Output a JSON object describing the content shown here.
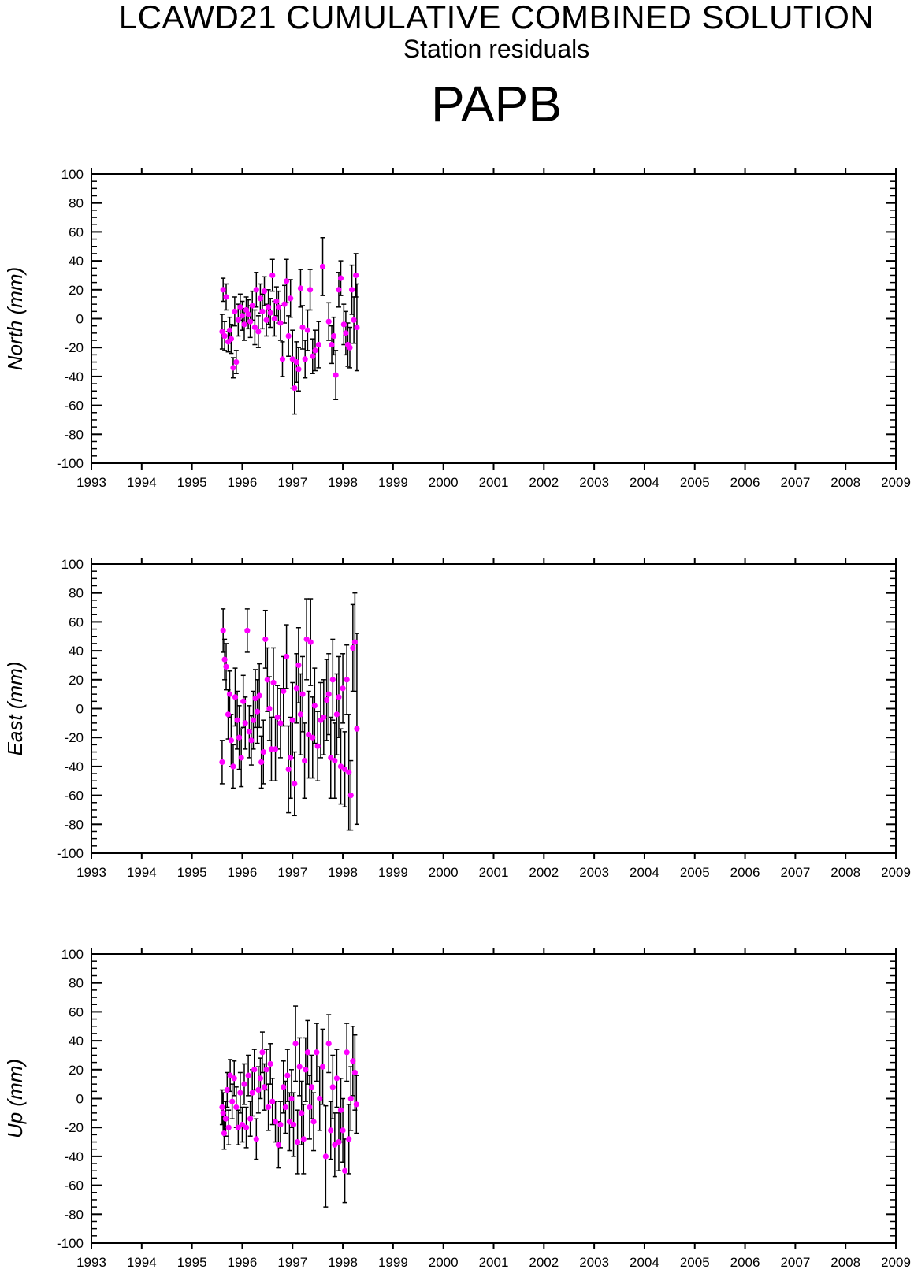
{
  "header": {
    "title": "LCAWD21 CUMULATIVE COMBINED SOLUTION",
    "subtitle": "Station residuals",
    "station": "PAPB"
  },
  "chart_data": [
    {
      "type": "scatter",
      "ylabel": "North (mm)",
      "xlim": [
        1993,
        2009
      ],
      "ylim": [
        -100,
        100
      ],
      "xticks": [
        1993,
        1994,
        1995,
        1996,
        1997,
        1998,
        1999,
        2000,
        2001,
        2002,
        2003,
        2004,
        2005,
        2006,
        2007,
        2008,
        2009
      ],
      "yticks": [
        100,
        80,
        60,
        40,
        20,
        0,
        -20,
        -40,
        -60,
        -80,
        -100
      ],
      "marker_color": "#ff00ff",
      "errorbar_color": "#000000",
      "points": [
        {
          "x": 1995.6,
          "y": -9,
          "err": 12
        },
        {
          "x": 1995.62,
          "y": 20,
          "err": 8
        },
        {
          "x": 1995.65,
          "y": -12,
          "err": 10
        },
        {
          "x": 1995.68,
          "y": 15,
          "err": 9
        },
        {
          "x": 1995.72,
          "y": -16,
          "err": 7
        },
        {
          "x": 1995.75,
          "y": -8,
          "err": 9
        },
        {
          "x": 1995.78,
          "y": -14,
          "err": 10
        },
        {
          "x": 1995.82,
          "y": -34,
          "err": 7
        },
        {
          "x": 1995.85,
          "y": 5,
          "err": 10
        },
        {
          "x": 1995.88,
          "y": -30,
          "err": 8
        },
        {
          "x": 1995.92,
          "y": -1,
          "err": 11
        },
        {
          "x": 1995.96,
          "y": 8,
          "err": 9
        },
        {
          "x": 1996.0,
          "y": 2,
          "err": 10
        },
        {
          "x": 1996.04,
          "y": -4,
          "err": 11
        },
        {
          "x": 1996.08,
          "y": 6,
          "err": 9
        },
        {
          "x": 1996.12,
          "y": 3,
          "err": 10
        },
        {
          "x": 1996.16,
          "y": -2,
          "err": 11
        },
        {
          "x": 1996.2,
          "y": 9,
          "err": 10
        },
        {
          "x": 1996.25,
          "y": -6,
          "err": 12
        },
        {
          "x": 1996.28,
          "y": 20,
          "err": 12
        },
        {
          "x": 1996.32,
          "y": -9,
          "err": 11
        },
        {
          "x": 1996.36,
          "y": 14,
          "err": 10
        },
        {
          "x": 1996.4,
          "y": 5,
          "err": 12
        },
        {
          "x": 1996.44,
          "y": 19,
          "err": 10
        },
        {
          "x": 1996.48,
          "y": -1,
          "err": 11
        },
        {
          "x": 1996.52,
          "y": 8,
          "err": 12
        },
        {
          "x": 1996.56,
          "y": 4,
          "err": 10
        },
        {
          "x": 1996.6,
          "y": 30,
          "err": 11
        },
        {
          "x": 1996.64,
          "y": 0,
          "err": 12
        },
        {
          "x": 1996.68,
          "y": 12,
          "err": 10
        },
        {
          "x": 1996.72,
          "y": 8,
          "err": 11
        },
        {
          "x": 1996.76,
          "y": -3,
          "err": 12
        },
        {
          "x": 1996.8,
          "y": -28,
          "err": 12
        },
        {
          "x": 1996.84,
          "y": 10,
          "err": 13
        },
        {
          "x": 1996.88,
          "y": 26,
          "err": 15
        },
        {
          "x": 1996.92,
          "y": -12,
          "err": 14
        },
        {
          "x": 1996.96,
          "y": 14,
          "err": 13
        },
        {
          "x": 1997.0,
          "y": -28,
          "err": 20
        },
        {
          "x": 1997.04,
          "y": -48,
          "err": 18
        },
        {
          "x": 1997.08,
          "y": -30,
          "err": 14
        },
        {
          "x": 1997.12,
          "y": -35,
          "err": 15
        },
        {
          "x": 1997.16,
          "y": 21,
          "err": 13
        },
        {
          "x": 1997.2,
          "y": -6,
          "err": 15
        },
        {
          "x": 1997.25,
          "y": -28,
          "err": 13
        },
        {
          "x": 1997.3,
          "y": -8,
          "err": 14
        },
        {
          "x": 1997.35,
          "y": 20,
          "err": 14
        },
        {
          "x": 1997.4,
          "y": -26,
          "err": 12
        },
        {
          "x": 1997.45,
          "y": -22,
          "err": 14
        },
        {
          "x": 1997.52,
          "y": -18,
          "err": 16
        },
        {
          "x": 1997.6,
          "y": 36,
          "err": 20
        },
        {
          "x": 1997.72,
          "y": -2,
          "err": 13
        },
        {
          "x": 1997.78,
          "y": -18,
          "err": 13
        },
        {
          "x": 1997.82,
          "y": -12,
          "err": 13
        },
        {
          "x": 1997.86,
          "y": -39,
          "err": 17
        },
        {
          "x": 1997.92,
          "y": 20,
          "err": 12
        },
        {
          "x": 1997.96,
          "y": 28,
          "err": 12
        },
        {
          "x": 1998.02,
          "y": -4,
          "err": 14
        },
        {
          "x": 1998.06,
          "y": -10,
          "err": 15
        },
        {
          "x": 1998.1,
          "y": -18,
          "err": 15
        },
        {
          "x": 1998.14,
          "y": -20,
          "err": 14
        },
        {
          "x": 1998.18,
          "y": 20,
          "err": 17
        },
        {
          "x": 1998.22,
          "y": -1,
          "err": 16
        },
        {
          "x": 1998.26,
          "y": 30,
          "err": 15
        },
        {
          "x": 1998.28,
          "y": -6,
          "err": 30
        }
      ]
    },
    {
      "type": "scatter",
      "ylabel": "East (mm)",
      "xlim": [
        1993,
        2009
      ],
      "ylim": [
        -100,
        100
      ],
      "xticks": [
        1993,
        1994,
        1995,
        1996,
        1997,
        1998,
        1999,
        2000,
        2001,
        2002,
        2003,
        2004,
        2005,
        2006,
        2007,
        2008,
        2009
      ],
      "yticks": [
        100,
        80,
        60,
        40,
        20,
        0,
        -20,
        -40,
        -60,
        -80,
        -100
      ],
      "marker_color": "#ff00ff",
      "errorbar_color": "#000000",
      "points": [
        {
          "x": 1995.6,
          "y": -37,
          "err": 15
        },
        {
          "x": 1995.62,
          "y": 54,
          "err": 15
        },
        {
          "x": 1995.65,
          "y": 34,
          "err": 14
        },
        {
          "x": 1995.68,
          "y": 29,
          "err": 16
        },
        {
          "x": 1995.72,
          "y": -4,
          "err": 17
        },
        {
          "x": 1995.75,
          "y": 10,
          "err": 16
        },
        {
          "x": 1995.78,
          "y": -22,
          "err": 18
        },
        {
          "x": 1995.82,
          "y": -40,
          "err": 15
        },
        {
          "x": 1995.86,
          "y": 8,
          "err": 20
        },
        {
          "x": 1995.9,
          "y": -8,
          "err": 20
        },
        {
          "x": 1995.94,
          "y": -20,
          "err": 22
        },
        {
          "x": 1995.98,
          "y": -34,
          "err": 20
        },
        {
          "x": 1996.02,
          "y": 5,
          "err": 18
        },
        {
          "x": 1996.06,
          "y": -10,
          "err": 18
        },
        {
          "x": 1996.1,
          "y": 54,
          "err": 15
        },
        {
          "x": 1996.14,
          "y": -16,
          "err": 18
        },
        {
          "x": 1996.18,
          "y": -22,
          "err": 17
        },
        {
          "x": 1996.22,
          "y": -8,
          "err": 20
        },
        {
          "x": 1996.26,
          "y": 7,
          "err": 20
        },
        {
          "x": 1996.3,
          "y": -2,
          "err": 22
        },
        {
          "x": 1996.34,
          "y": 9,
          "err": 22
        },
        {
          "x": 1996.38,
          "y": -37,
          "err": 18
        },
        {
          "x": 1996.42,
          "y": -30,
          "err": 22
        },
        {
          "x": 1996.46,
          "y": 48,
          "err": 20
        },
        {
          "x": 1996.5,
          "y": 20,
          "err": 22
        },
        {
          "x": 1996.54,
          "y": 0,
          "err": 22
        },
        {
          "x": 1996.58,
          "y": -28,
          "err": 22
        },
        {
          "x": 1996.62,
          "y": 18,
          "err": 24
        },
        {
          "x": 1996.66,
          "y": -28,
          "err": 22
        },
        {
          "x": 1996.7,
          "y": -6,
          "err": 22
        },
        {
          "x": 1996.76,
          "y": -10,
          "err": 24
        },
        {
          "x": 1996.82,
          "y": 12,
          "err": 24
        },
        {
          "x": 1996.88,
          "y": 36,
          "err": 22
        },
        {
          "x": 1996.92,
          "y": -42,
          "err": 30
        },
        {
          "x": 1996.96,
          "y": -34,
          "err": 28
        },
        {
          "x": 1997.0,
          "y": -8,
          "err": 26
        },
        {
          "x": 1997.04,
          "y": -52,
          "err": 22
        },
        {
          "x": 1997.08,
          "y": 14,
          "err": 24
        },
        {
          "x": 1997.12,
          "y": 30,
          "err": 26
        },
        {
          "x": 1997.16,
          "y": -4,
          "err": 28
        },
        {
          "x": 1997.2,
          "y": 10,
          "err": 26
        },
        {
          "x": 1997.24,
          "y": -36,
          "err": 26
        },
        {
          "x": 1997.28,
          "y": 48,
          "err": 28
        },
        {
          "x": 1997.32,
          "y": -18,
          "err": 30
        },
        {
          "x": 1997.36,
          "y": 46,
          "err": 30
        },
        {
          "x": 1997.4,
          "y": -20,
          "err": 28
        },
        {
          "x": 1997.44,
          "y": 2,
          "err": 26
        },
        {
          "x": 1997.5,
          "y": -26,
          "err": 24
        },
        {
          "x": 1997.56,
          "y": -8,
          "err": 26
        },
        {
          "x": 1997.62,
          "y": -6,
          "err": 26
        },
        {
          "x": 1997.68,
          "y": 6,
          "err": 28
        },
        {
          "x": 1997.72,
          "y": 10,
          "err": 28
        },
        {
          "x": 1997.76,
          "y": -34,
          "err": 28
        },
        {
          "x": 1997.8,
          "y": 20,
          "err": 28
        },
        {
          "x": 1997.84,
          "y": -36,
          "err": 26
        },
        {
          "x": 1997.88,
          "y": -4,
          "err": 28
        },
        {
          "x": 1997.92,
          "y": 8,
          "err": 28
        },
        {
          "x": 1997.96,
          "y": -40,
          "err": 26
        },
        {
          "x": 1998.0,
          "y": 14,
          "err": 24
        },
        {
          "x": 1998.04,
          "y": -42,
          "err": 26
        },
        {
          "x": 1998.08,
          "y": 20,
          "err": 24
        },
        {
          "x": 1998.12,
          "y": -44,
          "err": 40
        },
        {
          "x": 1998.16,
          "y": -60,
          "err": 24
        },
        {
          "x": 1998.2,
          "y": 42,
          "err": 30
        },
        {
          "x": 1998.24,
          "y": 46,
          "err": 34
        },
        {
          "x": 1998.28,
          "y": -14,
          "err": 66
        }
      ]
    },
    {
      "type": "scatter",
      "ylabel": "Up (mm)",
      "xlim": [
        1993,
        2009
      ],
      "ylim": [
        -100,
        100
      ],
      "xticks": [
        1993,
        1994,
        1995,
        1996,
        1997,
        1998,
        1999,
        2000,
        2001,
        2002,
        2003,
        2004,
        2005,
        2006,
        2007,
        2008,
        2009
      ],
      "yticks": [
        100,
        80,
        60,
        40,
        20,
        0,
        -20,
        -40,
        -60,
        -80,
        -100
      ],
      "marker_color": "#ff00ff",
      "errorbar_color": "#000000",
      "points": [
        {
          "x": 1995.6,
          "y": -6,
          "err": 12
        },
        {
          "x": 1995.62,
          "y": -10,
          "err": 14
        },
        {
          "x": 1995.64,
          "y": -24,
          "err": 11
        },
        {
          "x": 1995.67,
          "y": -14,
          "err": 12
        },
        {
          "x": 1995.7,
          "y": 6,
          "err": 12
        },
        {
          "x": 1995.73,
          "y": -20,
          "err": 12
        },
        {
          "x": 1995.76,
          "y": 16,
          "err": 11
        },
        {
          "x": 1995.8,
          "y": -2,
          "err": 12
        },
        {
          "x": 1995.84,
          "y": 14,
          "err": 12
        },
        {
          "x": 1995.88,
          "y": -6,
          "err": 14
        },
        {
          "x": 1995.92,
          "y": -20,
          "err": 12
        },
        {
          "x": 1995.96,
          "y": 4,
          "err": 14
        },
        {
          "x": 1996.0,
          "y": -18,
          "err": 12
        },
        {
          "x": 1996.04,
          "y": 10,
          "err": 14
        },
        {
          "x": 1996.08,
          "y": -20,
          "err": 14
        },
        {
          "x": 1996.12,
          "y": 16,
          "err": 14
        },
        {
          "x": 1996.16,
          "y": -14,
          "err": 12
        },
        {
          "x": 1996.2,
          "y": 4,
          "err": 16
        },
        {
          "x": 1996.24,
          "y": 20,
          "err": 14
        },
        {
          "x": 1996.28,
          "y": -28,
          "err": 14
        },
        {
          "x": 1996.32,
          "y": 6,
          "err": 16
        },
        {
          "x": 1996.36,
          "y": 14,
          "err": 14
        },
        {
          "x": 1996.4,
          "y": 32,
          "err": 14
        },
        {
          "x": 1996.44,
          "y": 8,
          "err": 16
        },
        {
          "x": 1996.48,
          "y": 20,
          "err": 14
        },
        {
          "x": 1996.52,
          "y": -6,
          "err": 16
        },
        {
          "x": 1996.56,
          "y": 24,
          "err": 14
        },
        {
          "x": 1996.6,
          "y": -2,
          "err": 16
        },
        {
          "x": 1996.66,
          "y": -16,
          "err": 14
        },
        {
          "x": 1996.72,
          "y": -32,
          "err": 16
        },
        {
          "x": 1996.76,
          "y": -18,
          "err": 16
        },
        {
          "x": 1996.82,
          "y": 8,
          "err": 18
        },
        {
          "x": 1996.86,
          "y": -6,
          "err": 18
        },
        {
          "x": 1996.9,
          "y": 16,
          "err": 18
        },
        {
          "x": 1996.94,
          "y": -16,
          "err": 20
        },
        {
          "x": 1996.98,
          "y": 0,
          "err": 20
        },
        {
          "x": 1997.02,
          "y": -18,
          "err": 22
        },
        {
          "x": 1997.06,
          "y": 38,
          "err": 26
        },
        {
          "x": 1997.1,
          "y": -30,
          "err": 22
        },
        {
          "x": 1997.14,
          "y": 22,
          "err": 20
        },
        {
          "x": 1997.18,
          "y": -10,
          "err": 22
        },
        {
          "x": 1997.22,
          "y": -28,
          "err": 24
        },
        {
          "x": 1997.26,
          "y": 20,
          "err": 22
        },
        {
          "x": 1997.3,
          "y": 32,
          "err": 22
        },
        {
          "x": 1997.34,
          "y": -6,
          "err": 22
        },
        {
          "x": 1997.38,
          "y": 8,
          "err": 22
        },
        {
          "x": 1997.42,
          "y": -16,
          "err": 20
        },
        {
          "x": 1997.48,
          "y": 32,
          "err": 20
        },
        {
          "x": 1997.54,
          "y": 0,
          "err": 22
        },
        {
          "x": 1997.6,
          "y": 22,
          "err": 26
        },
        {
          "x": 1997.66,
          "y": -40,
          "err": 35
        },
        {
          "x": 1997.72,
          "y": 38,
          "err": 20
        },
        {
          "x": 1997.76,
          "y": -22,
          "err": 20
        },
        {
          "x": 1997.8,
          "y": 8,
          "err": 22
        },
        {
          "x": 1997.84,
          "y": -32,
          "err": 22
        },
        {
          "x": 1997.88,
          "y": 14,
          "err": 20
        },
        {
          "x": 1997.92,
          "y": -30,
          "err": 20
        },
        {
          "x": 1997.96,
          "y": -8,
          "err": 22
        },
        {
          "x": 1998.0,
          "y": -22,
          "err": 22
        },
        {
          "x": 1998.04,
          "y": -50,
          "err": 22
        },
        {
          "x": 1998.08,
          "y": 32,
          "err": 20
        },
        {
          "x": 1998.12,
          "y": -28,
          "err": 24
        },
        {
          "x": 1998.16,
          "y": 0,
          "err": 22
        },
        {
          "x": 1998.2,
          "y": 26,
          "err": 24
        },
        {
          "x": 1998.24,
          "y": 18,
          "err": 26
        },
        {
          "x": 1998.27,
          "y": -4,
          "err": 20
        }
      ]
    }
  ]
}
